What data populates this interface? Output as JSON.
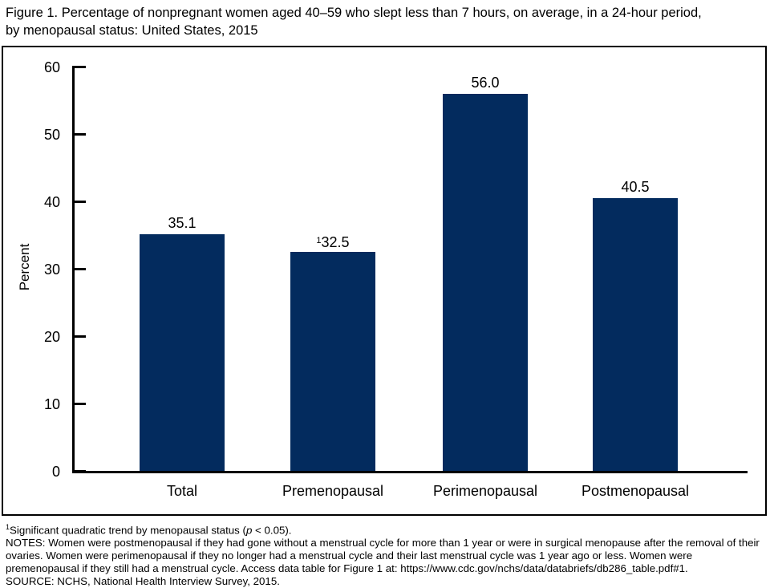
{
  "figure": {
    "title_line1": "Figure 1. Percentage of nonpregnant women aged 40–59 who slept less than 7 hours, on average, in a 24-hour period,",
    "title_line2": "by menopausal status: United States, 2015"
  },
  "chart_data": {
    "type": "bar",
    "title": "Figure 1. Percentage of nonpregnant women aged 40–59 who slept less than 7 hours, on average, in a 24-hour period, by menopausal status: United States, 2015",
    "categories": [
      "Total",
      "Premenopausal",
      "Perimenopausal",
      "Postmenopausal"
    ],
    "values": [
      35.1,
      32.5,
      56.0,
      40.5
    ],
    "value_labels": [
      "35.1",
      "32.5",
      "56.0",
      "40.5"
    ],
    "value_label_sup": [
      "",
      "1",
      "",
      ""
    ],
    "xlabel": "",
    "ylabel": "Percent",
    "ylim": [
      0,
      60
    ],
    "yticks": [
      0,
      10,
      20,
      30,
      40,
      50,
      60
    ],
    "grid": false,
    "legend": "none",
    "bar_color": "#032b5e"
  },
  "footnotes": {
    "trend_sup": "1",
    "trend_pre": "Significant quadratic trend by menopausal status (",
    "trend_p": "p",
    "trend_post": " < 0.05).",
    "notes": "NOTES: Women were postmenopausal if they had gone without a menstrual cycle for more than 1 year or were in surgical menopause after the removal of their ovaries. Women were perimenopausal if they no longer had a menstrual cycle and their last menstrual cycle was 1 year ago or less. Women were premenopausal if they still had a menstrual cycle. Access data table for Figure 1 at: https://www.cdc.gov/nchs/data/databriefs/db286_table.pdf#1.",
    "source": "SOURCE: NCHS, National Health Interview Survey, 2015."
  }
}
